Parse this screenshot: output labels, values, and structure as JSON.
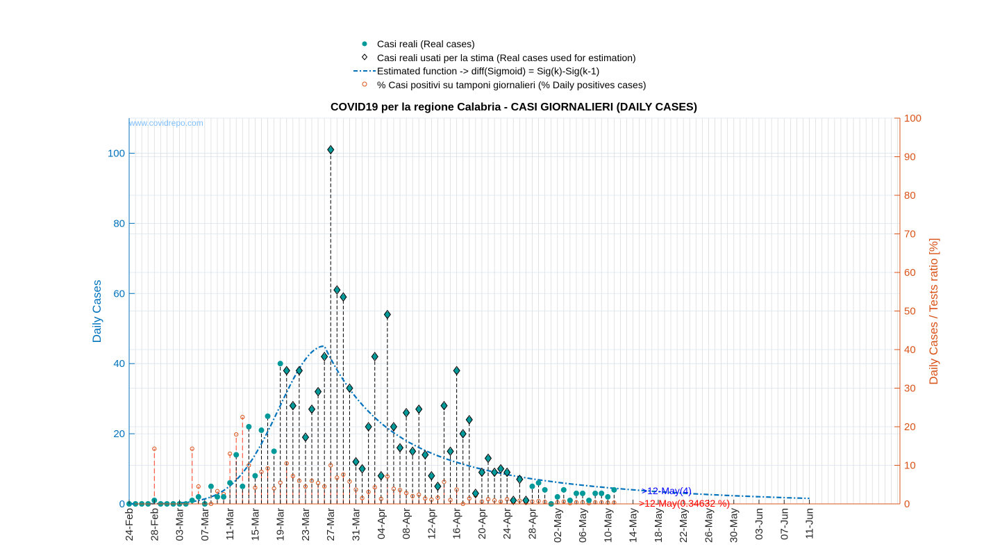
{
  "chart_data": {
    "type": "scatter",
    "title": "COVID19 per la regione Calabria - CASI GIORNALIERI (DAILY CASES)",
    "ylabel_left": "Daily Cases",
    "ylabel_right": "Daily Cases / Tests ratio [%]",
    "watermark": "www.covidrepo.com",
    "ylim_left": [
      0,
      110
    ],
    "ylim_right": [
      0,
      100
    ],
    "yticks_left": [
      "0",
      "20",
      "40",
      "60",
      "80",
      "100"
    ],
    "yticks_right": [
      "0",
      "10",
      "20",
      "30",
      "40",
      "50",
      "60",
      "70",
      "80",
      "90",
      "100"
    ],
    "x_start_date": "24-Feb",
    "x_tick_labels": [
      "24-Feb",
      "28-Feb",
      "03-Mar",
      "07-Mar",
      "11-Mar",
      "15-Mar",
      "19-Mar",
      "23-Mar",
      "27-Mar",
      "31-Mar",
      "04-Apr",
      "08-Apr",
      "12-Apr",
      "16-Apr",
      "20-Apr",
      "24-Apr",
      "28-Apr",
      "02-May",
      "06-May",
      "10-May",
      "14-May",
      "18-May",
      "22-May",
      "26-May",
      "30-May",
      "03-Jun",
      "07-Jun",
      "11-Jun"
    ],
    "grid": true,
    "legend_position": "top-center",
    "legend": [
      "Casi reali (Real cases)",
      "Casi reali usati per la stima (Real cases used for estimation)",
      "Estimated function -> diff(Sigmoid) = Sig(k)-Sig(k-1)",
      "% Casi positivi su tamponi giornalieri (% Daily positives cases)"
    ],
    "annotations": [
      {
        "text": ">12-May(4)",
        "color": "#0000ff"
      },
      {
        "text": ">12-May(0.34632 %)",
        "color": "#ff0000"
      }
    ],
    "series": [
      {
        "name": "Casi reali (Real cases)",
        "color": "#009999",
        "values": [
          0,
          0,
          0,
          0,
          1,
          0,
          0,
          0,
          0,
          0,
          1,
          2,
          0,
          5,
          2,
          2,
          6,
          14,
          5,
          22,
          8,
          21,
          25,
          15,
          40,
          38,
          28,
          38,
          19,
          27,
          32,
          42,
          101,
          61,
          59,
          33,
          12,
          10,
          22,
          42,
          8,
          54,
          22,
          16,
          26,
          15,
          27,
          14,
          8,
          5,
          28,
          15,
          38,
          20,
          24,
          3,
          9,
          13,
          9,
          10,
          9,
          1,
          7,
          1,
          5,
          6,
          4,
          0,
          2,
          4,
          1,
          3,
          3,
          1,
          3,
          3,
          2,
          4
        ]
      },
      {
        "name": "Casi reali usati per la stima (Real cases used for estimation)",
        "color": "#000000",
        "start_index": 25,
        "end_index": 63
      },
      {
        "name": "Estimated function -> diff(Sigmoid) = Sig(k)-Sig(k-1)",
        "color": "#0072bd",
        "style": "dash-dot",
        "peak": 45,
        "peak_date": "26-Mar",
        "end_date": "11-Jun",
        "end_value": 0.8
      },
      {
        "name": "% Casi positivi su tamponi giornalieri (% Daily positives cases)",
        "color": "#d95319",
        "values": [
          0,
          0,
          0,
          0,
          14.3,
          0,
          0,
          0,
          0,
          0,
          14.3,
          4.5,
          0,
          0,
          3.3,
          2.5,
          13,
          18,
          22.5,
          10,
          4.2,
          8.3,
          9.2,
          4,
          5.5,
          10.5,
          7.2,
          6,
          4.5,
          6,
          5.4,
          4.5,
          10,
          6.8,
          7.6,
          5.8,
          3.7,
          1.5,
          3.1,
          4.3,
          1.3,
          7.1,
          3.9,
          3.6,
          2.8,
          2.0,
          2.4,
          1.4,
          1.1,
          1.6,
          5.7,
          1.0,
          3.7,
          0,
          1.4,
          2.2,
          0.6,
          1.2,
          0.9,
          0.6,
          1.2,
          0.4,
          0.8,
          0.3,
          0.6,
          0.7,
          0.5,
          0,
          0.4,
          0.6,
          0.2,
          0.4,
          0.4,
          0.2,
          0.4,
          0.4,
          0.3,
          0.35
        ]
      }
    ]
  }
}
